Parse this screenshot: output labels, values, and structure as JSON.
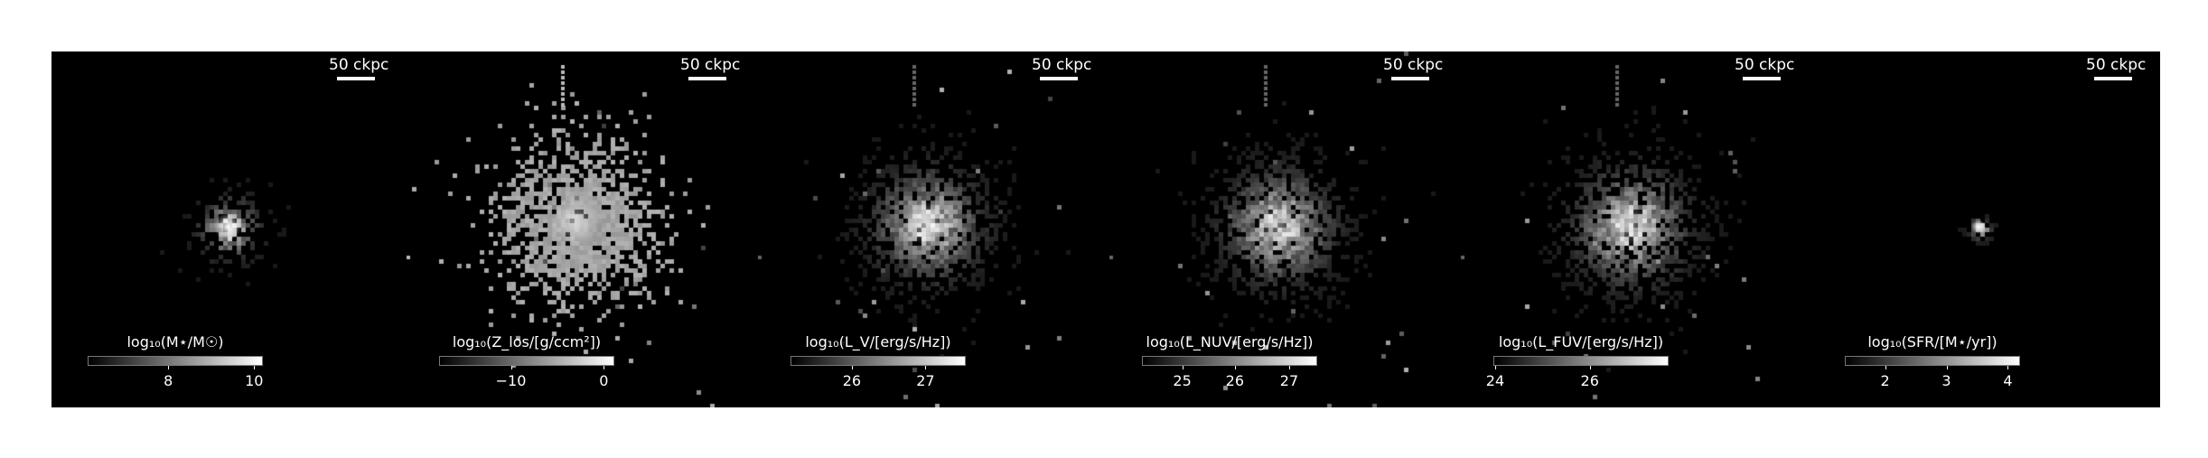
{
  "figure": {
    "panels": [
      {
        "id": "mstar",
        "scalebar": "50 ckpc",
        "colorbar_title": "log₁₀(M⋆/M☉)",
        "colorbar_ticks": [
          "8",
          "10"
        ],
        "tick_fractions": [
          0.46,
          0.95
        ]
      },
      {
        "id": "zlos",
        "scalebar": "50 ckpc",
        "colorbar_title": "log₁₀(Z_los/[g/ccm²])",
        "colorbar_ticks": [
          "−10",
          "0"
        ],
        "tick_fractions": [
          0.41,
          0.94
        ]
      },
      {
        "id": "lv",
        "scalebar": "50 ckpc",
        "colorbar_title": "log₁₀(L_V/[erg/s/Hz])",
        "colorbar_ticks": [
          "26",
          "27"
        ],
        "tick_fractions": [
          0.35,
          0.77
        ]
      },
      {
        "id": "lnuv",
        "scalebar": "50 ckpc",
        "colorbar_title": "log₁₀(L_NUV/[erg/s/Hz])",
        "colorbar_ticks": [
          "25",
          "26",
          "27"
        ],
        "tick_fractions": [
          0.23,
          0.53,
          0.84
        ]
      },
      {
        "id": "lfuv",
        "scalebar": "50 ckpc",
        "colorbar_title": "log₁₀(L_FUV/[erg/s/Hz])",
        "colorbar_ticks": [
          "24",
          "26"
        ],
        "tick_fractions": [
          0.01,
          0.55
        ]
      },
      {
        "id": "sfr",
        "scalebar": "50 ckpc",
        "colorbar_title": "log₁₀(SFR/[M⋆/yr])",
        "colorbar_ticks": [
          "2",
          "3",
          "4"
        ],
        "tick_fractions": [
          0.23,
          0.58,
          0.93
        ]
      }
    ]
  }
}
